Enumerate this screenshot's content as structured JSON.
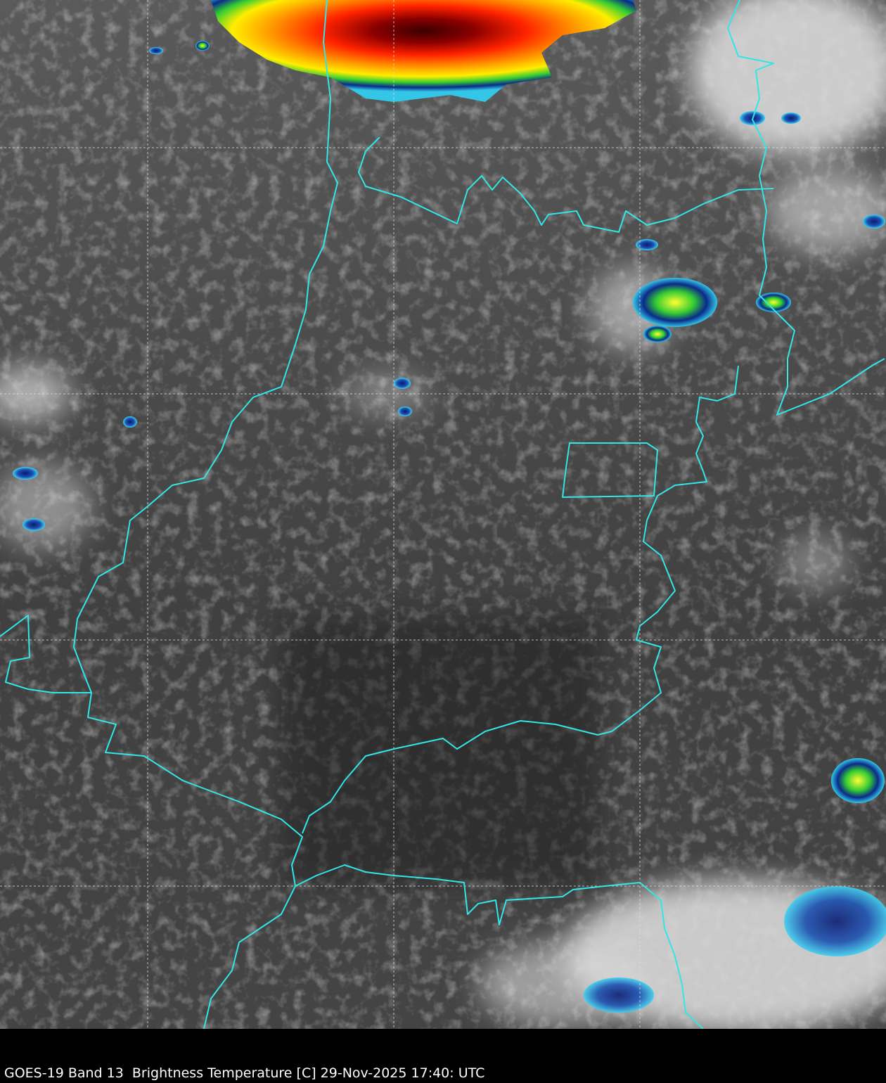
{
  "caption": "GOES-19 Band 13  Brightness Temperature [C] 29-Nov-2025 17:40: UTC",
  "colors": {
    "border": "#33e6e6",
    "grid": "#dddddd",
    "background": "#000000",
    "cold_cloud_scale": [
      "#ffffff",
      "#33c6e6",
      "#0a2a8a",
      "#00cc33",
      "#ffff00",
      "#ff8800",
      "#ff0000",
      "#700000",
      "#111111"
    ]
  },
  "grid": {
    "style": "dashed",
    "visible": true
  }
}
